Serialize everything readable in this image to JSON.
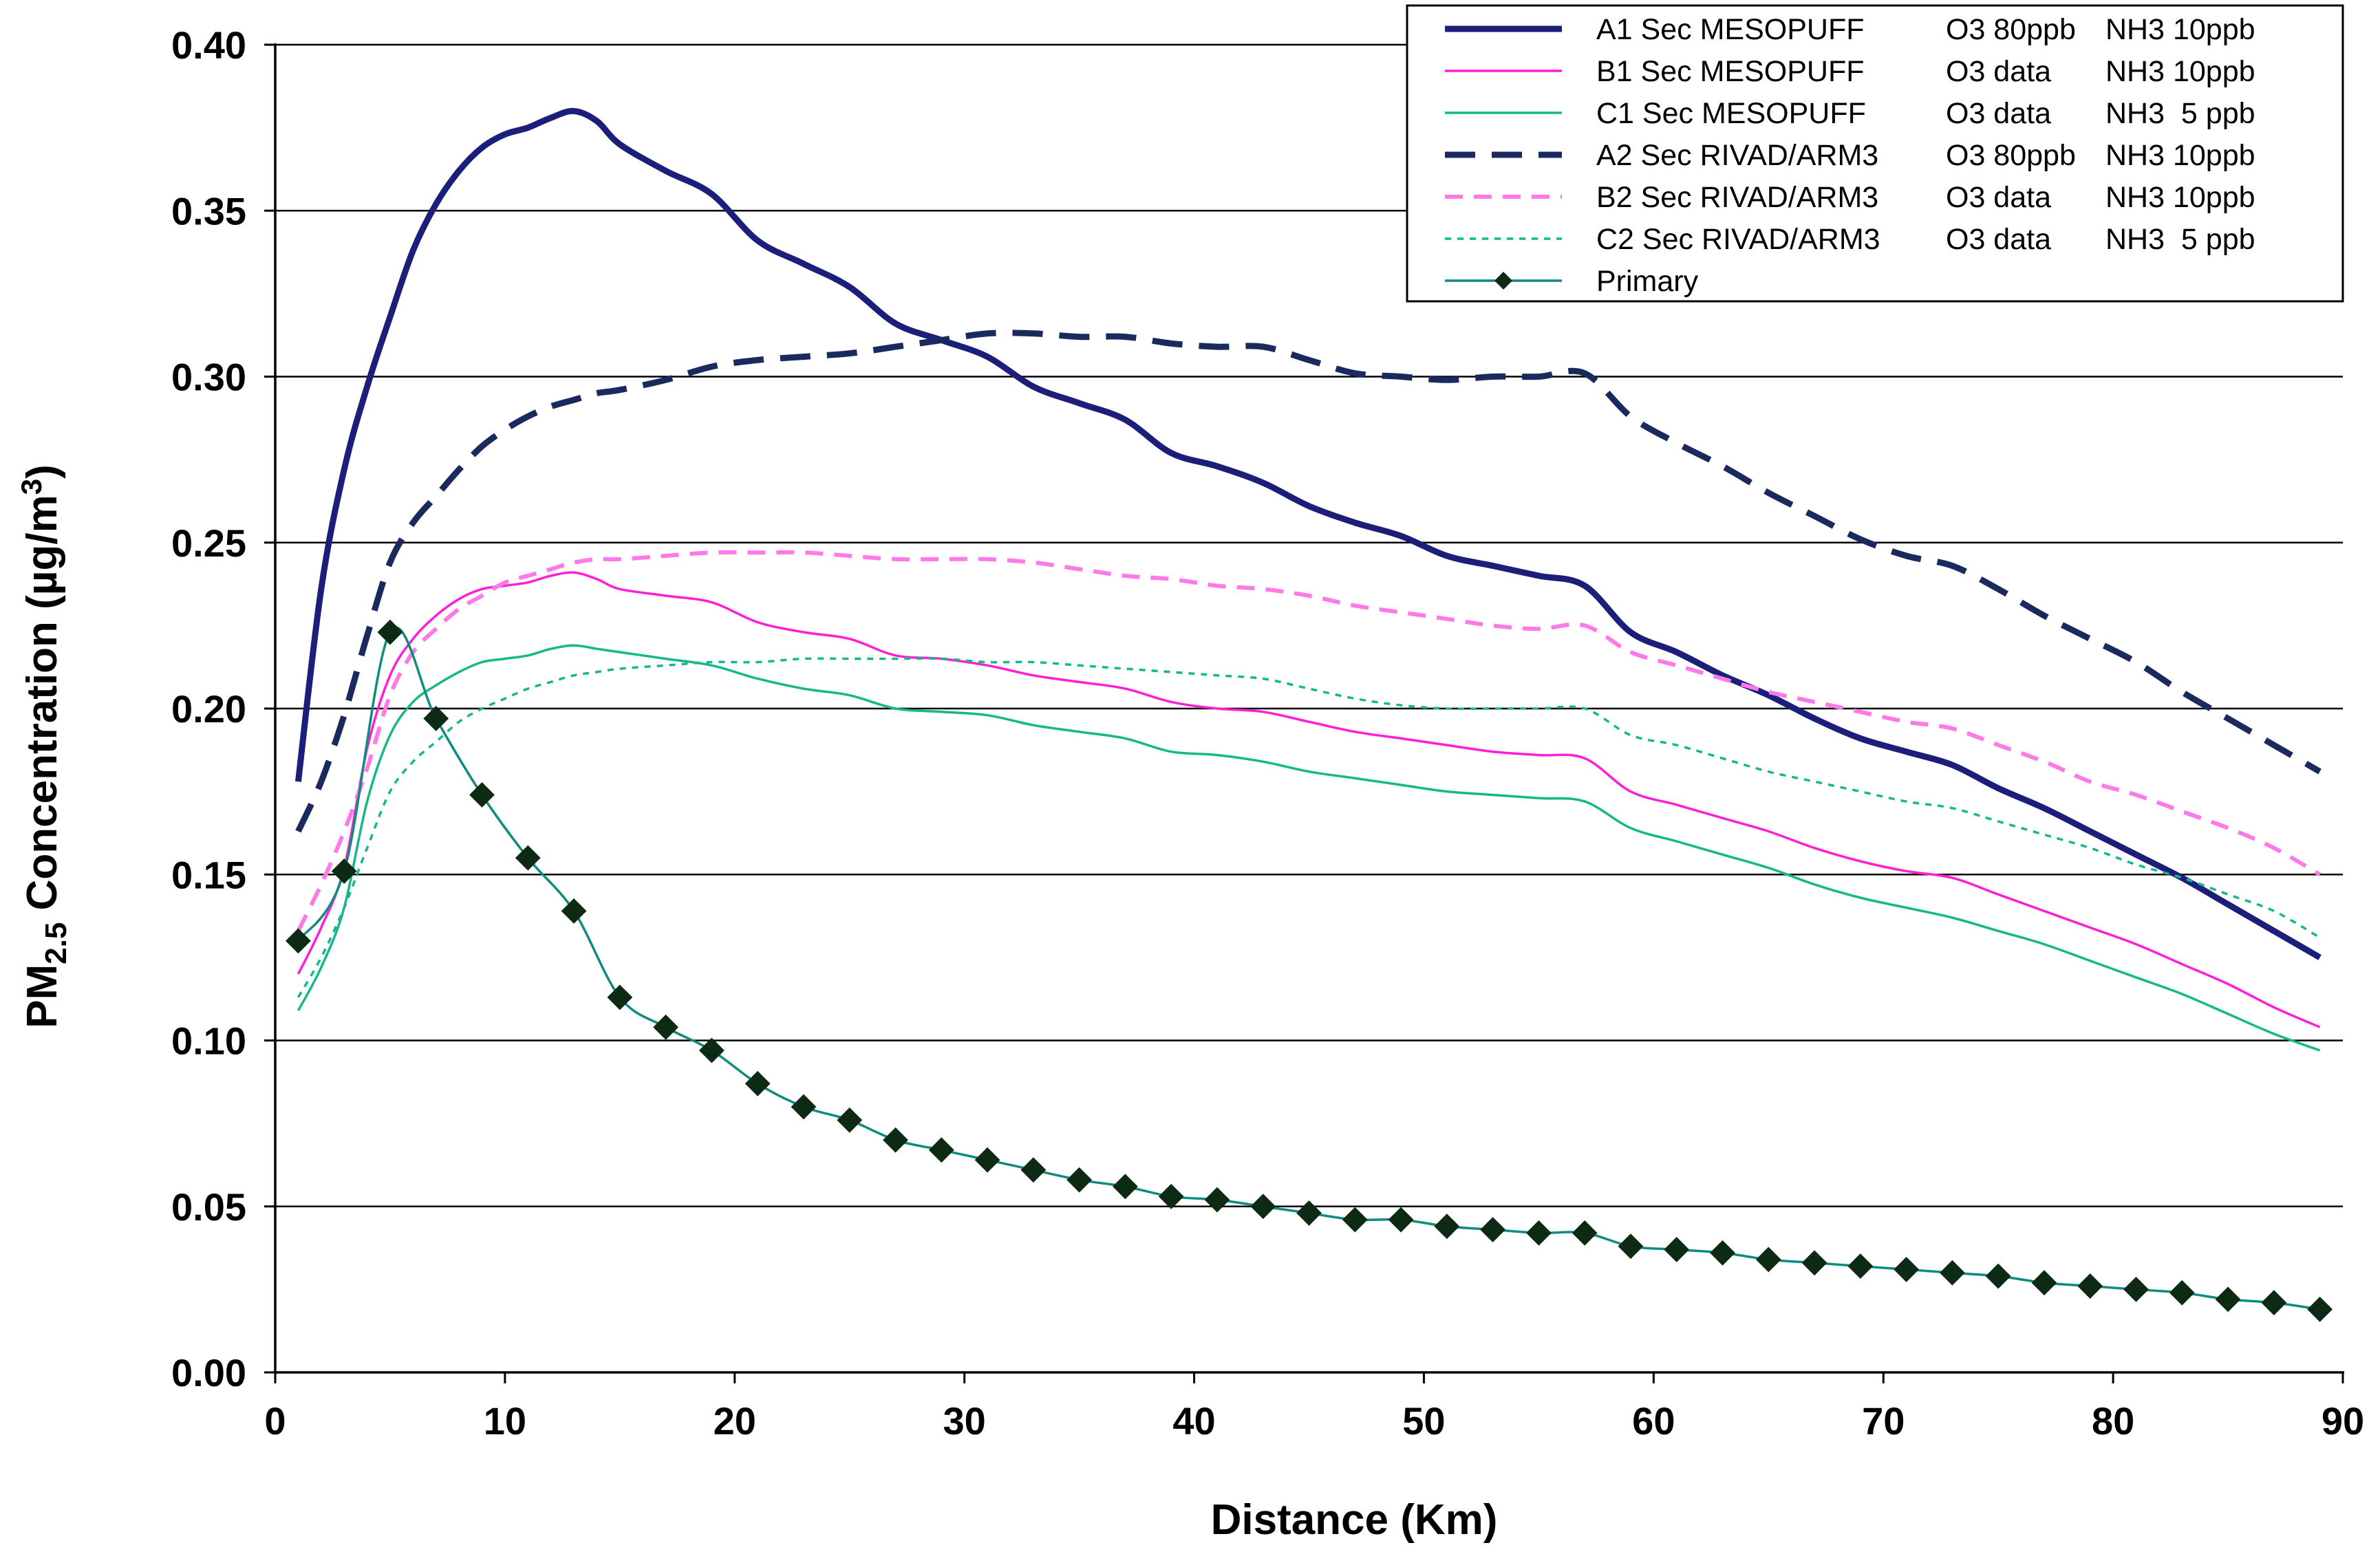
{
  "chart_data": {
    "type": "line",
    "title": "",
    "xlabel": "Distance (Km)",
    "ylabel": {
      "prefix": "PM",
      "subscript": "2.5",
      "middle": " Concentration (µg/m",
      "superscript": "3",
      "suffix": ")"
    },
    "xlim": [
      0,
      90
    ],
    "ylim": [
      0,
      0.4
    ],
    "x_ticks": [
      "0",
      "10",
      "20",
      "30",
      "40",
      "50",
      "60",
      "70",
      "80",
      "90"
    ],
    "y_ticks": [
      "0.00",
      "0.05",
      "0.10",
      "0.15",
      "0.20",
      "0.25",
      "0.30",
      "0.35",
      "0.40"
    ],
    "grid": "horizontal",
    "legend_position": "top-right",
    "series": [
      {
        "legend": [
          "A1 Sec MESOPUFF",
          "O3 80ppb",
          "NH3 10ppb"
        ],
        "color": "#1b1f7a",
        "style": "solid",
        "weight": "thick",
        "x": [
          1,
          2,
          3,
          4,
          5,
          6,
          7,
          8,
          9,
          10,
          11,
          12,
          13,
          14,
          15,
          17,
          19,
          21,
          23,
          25,
          27,
          29,
          31,
          33,
          35,
          37,
          39,
          41,
          43,
          45,
          47,
          49,
          51,
          53,
          55,
          57,
          59,
          61,
          63,
          65,
          67,
          69,
          71,
          73,
          75,
          77,
          79,
          81,
          83,
          85,
          87,
          89
        ],
        "y": [
          0.178,
          0.236,
          0.272,
          0.297,
          0.318,
          0.338,
          0.352,
          0.362,
          0.369,
          0.373,
          0.375,
          0.378,
          0.38,
          0.377,
          0.37,
          0.362,
          0.355,
          0.341,
          0.334,
          0.327,
          0.316,
          0.311,
          0.306,
          0.297,
          0.292,
          0.287,
          0.277,
          0.273,
          0.268,
          0.261,
          0.256,
          0.252,
          0.246,
          0.243,
          0.24,
          0.237,
          0.223,
          0.217,
          0.21,
          0.204,
          0.197,
          0.191,
          0.187,
          0.183,
          0.176,
          0.17,
          0.163,
          0.156,
          0.149,
          0.141,
          0.133,
          0.125
        ]
      },
      {
        "legend": [
          "B1 Sec MESOPUFF",
          "O3 data",
          "NH3 10ppb"
        ],
        "color": "#ff1fd7",
        "style": "solid",
        "weight": "thin",
        "x": [
          1,
          2,
          3,
          4,
          5,
          6,
          7,
          8,
          9,
          10,
          11,
          12,
          13,
          14,
          15,
          17,
          19,
          21,
          23,
          25,
          27,
          29,
          31,
          33,
          35,
          37,
          39,
          41,
          43,
          45,
          47,
          49,
          51,
          53,
          55,
          57,
          59,
          61,
          63,
          65,
          67,
          69,
          71,
          73,
          75,
          77,
          79,
          81,
          83,
          85,
          87,
          89
        ],
        "y": [
          0.12,
          0.134,
          0.152,
          0.188,
          0.21,
          0.221,
          0.228,
          0.233,
          0.236,
          0.237,
          0.238,
          0.24,
          0.241,
          0.239,
          0.236,
          0.234,
          0.232,
          0.226,
          0.223,
          0.221,
          0.216,
          0.215,
          0.213,
          0.21,
          0.208,
          0.206,
          0.202,
          0.2,
          0.199,
          0.196,
          0.193,
          0.191,
          0.189,
          0.187,
          0.186,
          0.185,
          0.175,
          0.171,
          0.167,
          0.163,
          0.158,
          0.154,
          0.151,
          0.149,
          0.144,
          0.139,
          0.134,
          0.129,
          0.123,
          0.117,
          0.11,
          0.104
        ]
      },
      {
        "legend": [
          "C1 Sec MESOPUFF",
          "O3 data",
          "NH3  5 ppb"
        ],
        "color": "#14b88a",
        "style": "solid",
        "weight": "thin",
        "x": [
          1,
          2,
          3,
          4,
          5,
          6,
          7,
          8,
          9,
          10,
          11,
          12,
          13,
          14,
          15,
          17,
          19,
          21,
          23,
          25,
          27,
          29,
          31,
          33,
          35,
          37,
          39,
          41,
          43,
          45,
          47,
          49,
          51,
          53,
          55,
          57,
          59,
          61,
          63,
          65,
          67,
          69,
          71,
          73,
          75,
          77,
          79,
          81,
          83,
          85,
          87,
          89
        ],
        "y": [
          0.109,
          0.122,
          0.14,
          0.172,
          0.192,
          0.202,
          0.207,
          0.211,
          0.214,
          0.215,
          0.216,
          0.218,
          0.219,
          0.218,
          0.217,
          0.215,
          0.213,
          0.209,
          0.206,
          0.204,
          0.2,
          0.199,
          0.198,
          0.195,
          0.193,
          0.191,
          0.187,
          0.186,
          0.184,
          0.181,
          0.179,
          0.177,
          0.175,
          0.174,
          0.173,
          0.172,
          0.164,
          0.16,
          0.156,
          0.152,
          0.147,
          0.143,
          0.14,
          0.137,
          0.133,
          0.129,
          0.124,
          0.119,
          0.114,
          0.108,
          0.102,
          0.097
        ]
      },
      {
        "legend": [
          "A2 Sec RIVAD/ARM3",
          "O3 80ppb",
          "NH3 10ppb"
        ],
        "color": "#1b2a5e",
        "style": "dashed",
        "weight": "thick",
        "x": [
          1,
          2,
          3,
          4,
          5,
          6,
          7,
          8,
          9,
          10,
          11,
          12,
          13,
          14,
          15,
          17,
          19,
          21,
          23,
          25,
          27,
          29,
          31,
          33,
          35,
          37,
          39,
          41,
          43,
          45,
          47,
          49,
          51,
          53,
          55,
          57,
          59,
          61,
          63,
          65,
          67,
          69,
          71,
          73,
          75,
          77,
          79,
          81,
          83,
          85,
          87,
          89
        ],
        "y": [
          0.163,
          0.178,
          0.198,
          0.222,
          0.244,
          0.256,
          0.264,
          0.272,
          0.279,
          0.284,
          0.288,
          0.291,
          0.293,
          0.295,
          0.296,
          0.299,
          0.303,
          0.305,
          0.306,
          0.307,
          0.309,
          0.311,
          0.313,
          0.313,
          0.312,
          0.312,
          0.31,
          0.309,
          0.309,
          0.305,
          0.301,
          0.3,
          0.299,
          0.3,
          0.3,
          0.301,
          0.288,
          0.28,
          0.273,
          0.265,
          0.258,
          0.251,
          0.246,
          0.243,
          0.236,
          0.228,
          0.221,
          0.214,
          0.205,
          0.197,
          0.189,
          0.181
        ]
      },
      {
        "legend": [
          "B2 Sec RIVAD/ARM3",
          "O3 data",
          "NH3 10ppb"
        ],
        "color": "#ff7ae8",
        "style": "dashed",
        "weight": "medium",
        "x": [
          1,
          2,
          3,
          4,
          5,
          6,
          7,
          8,
          9,
          10,
          11,
          12,
          13,
          14,
          15,
          17,
          19,
          21,
          23,
          25,
          27,
          29,
          31,
          33,
          35,
          37,
          39,
          41,
          43,
          45,
          47,
          49,
          51,
          53,
          55,
          57,
          59,
          61,
          63,
          65,
          67,
          69,
          71,
          73,
          75,
          77,
          79,
          81,
          83,
          85,
          87,
          89
        ],
        "y": [
          0.133,
          0.147,
          0.163,
          0.182,
          0.204,
          0.217,
          0.224,
          0.23,
          0.234,
          0.238,
          0.24,
          0.242,
          0.244,
          0.245,
          0.245,
          0.246,
          0.247,
          0.247,
          0.247,
          0.246,
          0.245,
          0.245,
          0.245,
          0.244,
          0.242,
          0.24,
          0.239,
          0.237,
          0.236,
          0.234,
          0.231,
          0.229,
          0.227,
          0.225,
          0.224,
          0.225,
          0.217,
          0.213,
          0.209,
          0.205,
          0.202,
          0.199,
          0.196,
          0.194,
          0.189,
          0.184,
          0.178,
          0.174,
          0.169,
          0.164,
          0.158,
          0.15
        ]
      },
      {
        "legend": [
          "C2 Sec RIVAD/ARM3",
          "O3 data",
          "NH3  5 ppb"
        ],
        "color": "#14b88a",
        "style": "dotted",
        "weight": "thin",
        "x": [
          1,
          2,
          3,
          4,
          5,
          6,
          7,
          8,
          9,
          10,
          11,
          12,
          13,
          14,
          15,
          17,
          19,
          21,
          23,
          25,
          27,
          29,
          31,
          33,
          35,
          37,
          39,
          41,
          43,
          45,
          47,
          49,
          51,
          53,
          55,
          57,
          59,
          61,
          63,
          65,
          67,
          69,
          71,
          73,
          75,
          77,
          79,
          81,
          83,
          85,
          87,
          89
        ],
        "y": [
          0.113,
          0.125,
          0.14,
          0.158,
          0.175,
          0.184,
          0.19,
          0.196,
          0.2,
          0.203,
          0.206,
          0.208,
          0.21,
          0.211,
          0.212,
          0.213,
          0.214,
          0.214,
          0.215,
          0.215,
          0.215,
          0.215,
          0.214,
          0.214,
          0.213,
          0.212,
          0.211,
          0.21,
          0.209,
          0.206,
          0.203,
          0.201,
          0.2,
          0.2,
          0.2,
          0.2,
          0.192,
          0.189,
          0.185,
          0.181,
          0.178,
          0.175,
          0.172,
          0.17,
          0.166,
          0.162,
          0.158,
          0.153,
          0.149,
          0.144,
          0.139,
          0.131
        ]
      },
      {
        "legend": [
          "Primary"
        ],
        "color": "#0f8c80",
        "style": "solid",
        "weight": "thin",
        "marker": "diamond",
        "marker_color": "#0c2a14",
        "x": [
          1,
          3,
          5,
          7,
          9,
          11,
          13,
          15,
          17,
          19,
          21,
          23,
          25,
          27,
          29,
          31,
          33,
          35,
          37,
          39,
          41,
          43,
          45,
          47,
          49,
          51,
          53,
          55,
          57,
          59,
          61,
          63,
          65,
          67,
          69,
          71,
          73,
          75,
          77,
          79,
          81,
          83,
          85,
          87,
          89
        ],
        "y": [
          0.13,
          0.151,
          0.223,
          0.197,
          0.174,
          0.155,
          0.139,
          0.113,
          0.104,
          0.097,
          0.087,
          0.08,
          0.076,
          0.07,
          0.067,
          0.064,
          0.061,
          0.058,
          0.056,
          0.053,
          0.052,
          0.05,
          0.048,
          0.046,
          0.046,
          0.044,
          0.043,
          0.042,
          0.042,
          0.038,
          0.037,
          0.036,
          0.034,
          0.033,
          0.032,
          0.031,
          0.03,
          0.029,
          0.027,
          0.026,
          0.025,
          0.024,
          0.022,
          0.021,
          0.019
        ]
      }
    ]
  }
}
